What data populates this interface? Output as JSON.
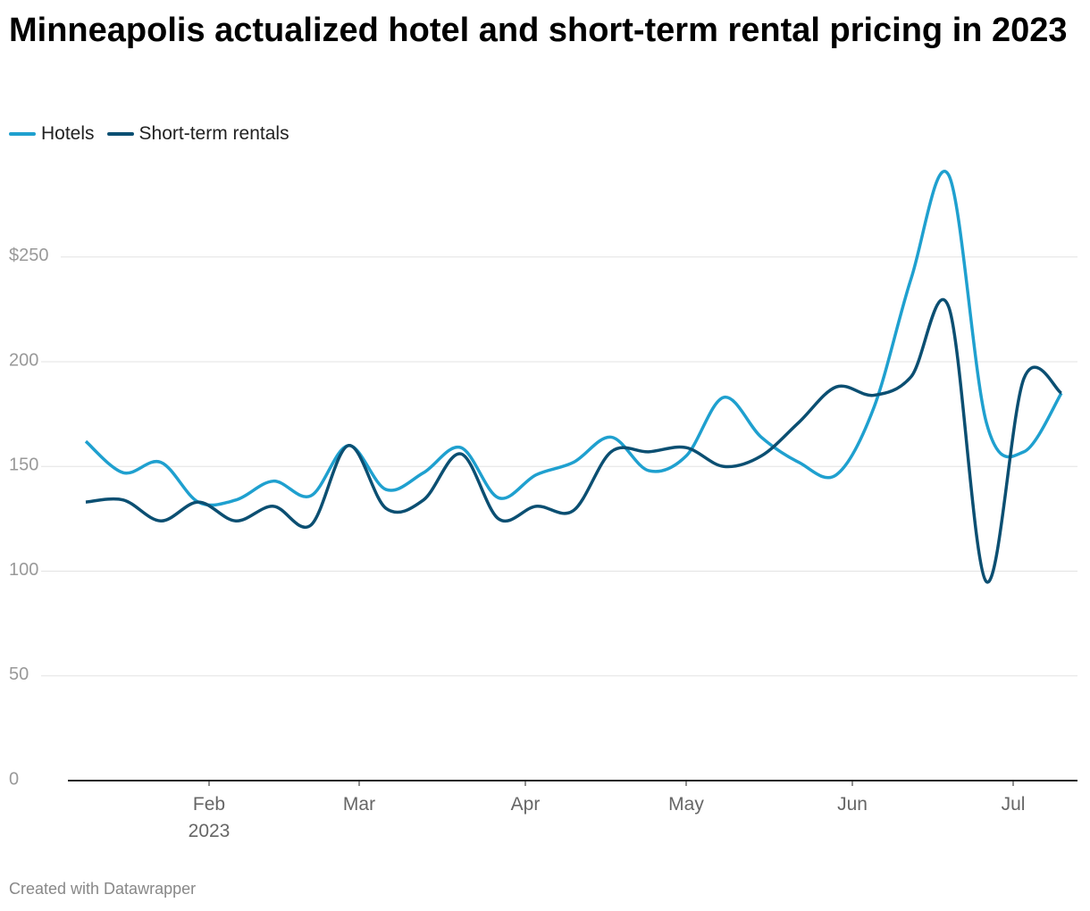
{
  "chart_data": {
    "type": "line",
    "title": "Minneapolis actualized hotel and short-term rental pricing in 2023",
    "footer": "Created with Datawrapper",
    "x": [
      "2023-01-09",
      "2023-01-16",
      "2023-01-23",
      "2023-01-30",
      "2023-02-06",
      "2023-02-13",
      "2023-02-20",
      "2023-02-27",
      "2023-03-06",
      "2023-03-13",
      "2023-03-20",
      "2023-03-27",
      "2023-04-03",
      "2023-04-10",
      "2023-04-17",
      "2023-04-24",
      "2023-05-01",
      "2023-05-08",
      "2023-05-15",
      "2023-05-22",
      "2023-05-29",
      "2023-06-05",
      "2023-06-12",
      "2023-06-19",
      "2023-06-26",
      "2023-07-03",
      "2023-07-10"
    ],
    "series": [
      {
        "name": "Hotels",
        "color": "#1fa0cf",
        "values": [
          162,
          147,
          152,
          133,
          134,
          143,
          136,
          160,
          139,
          147,
          159,
          135,
          146,
          152,
          164,
          148,
          155,
          183,
          164,
          152,
          146,
          178,
          240,
          289,
          171,
          157,
          185
        ]
      },
      {
        "name": "Short-term rentals",
        "color": "#0b4f72",
        "values": [
          133,
          134,
          124,
          133,
          124,
          131,
          122,
          160,
          130,
          134,
          156,
          125,
          131,
          129,
          157,
          157,
          159,
          150,
          155,
          171,
          188,
          184,
          193,
          226,
          95,
          192,
          185
        ]
      }
    ],
    "xlim": [
      "2023-01-06",
      "2023-07-13"
    ],
    "xticks": [
      {
        "value": "2023-02-01",
        "label": "Feb\n2023"
      },
      {
        "value": "2023-03-01",
        "label": "Mar"
      },
      {
        "value": "2023-04-01",
        "label": "Apr"
      },
      {
        "value": "2023-05-01",
        "label": "May"
      },
      {
        "value": "2023-06-01",
        "label": "Jun"
      },
      {
        "value": "2023-07-01",
        "label": "Jul"
      }
    ],
    "ylim": [
      0,
      290
    ],
    "yticks": [
      0,
      50,
      100,
      150,
      200,
      {
        "value": 250,
        "label": "$250"
      }
    ],
    "grid": true,
    "legend": "top"
  }
}
